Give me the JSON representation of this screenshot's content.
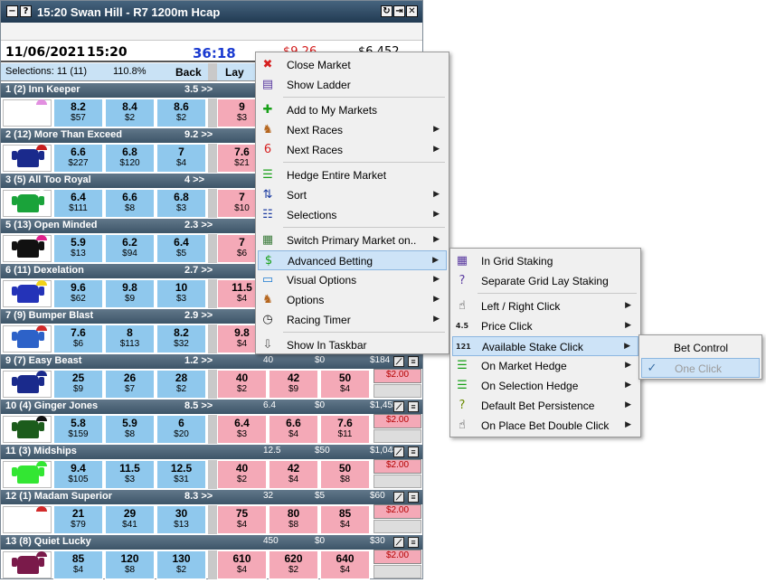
{
  "window": {
    "title": "15:20  Swan Hill - R7 1200m Hcap",
    "min_glyph": "−",
    "help_glyph": "?",
    "right_btns": [
      "↻",
      "⇥",
      "✕"
    ]
  },
  "info": {
    "date": "11/06/2021",
    "time": "15:20",
    "countdown": "36:18",
    "matched": "$9.26",
    "total": "$6,452"
  },
  "header": {
    "selections": "Selections: 11 (11)",
    "percent": "110.8%",
    "back": "Back",
    "lay": "Lay"
  },
  "runners": [
    {
      "name": "1  (2) Inn Keeper",
      "odds": "3.5 >>",
      "extra": [
        "",
        "",
        ""
      ],
      "back": [
        {
          "p": "8.2",
          "a": "$57"
        },
        {
          "p": "8.4",
          "a": "$2"
        },
        {
          "p": "8.6",
          "a": "$2"
        }
      ],
      "lay": [
        {
          "p": "9",
          "a": "$3"
        }
      ],
      "body": "#ffffff",
      "cap": "#e28fe0"
    },
    {
      "name": "2  (12) More Than Exceed",
      "odds": "9.2 >>",
      "extra": [
        "",
        "",
        ""
      ],
      "back": [
        {
          "p": "6.6",
          "a": "$227"
        },
        {
          "p": "6.8",
          "a": "$120"
        },
        {
          "p": "7",
          "a": "$4"
        }
      ],
      "lay": [
        {
          "p": "7.6",
          "a": "$21"
        }
      ],
      "body": "#1a2a8c",
      "cap": "#c81e1e"
    },
    {
      "name": "3  (5) All Too Royal",
      "odds": "4 >>",
      "extra": [
        "",
        "",
        ""
      ],
      "back": [
        {
          "p": "6.4",
          "a": "$111"
        },
        {
          "p": "6.6",
          "a": "$8"
        },
        {
          "p": "6.8",
          "a": "$3"
        }
      ],
      "lay": [
        {
          "p": "7",
          "a": "$10"
        }
      ],
      "body": "#1aa33a",
      "cap": "#ffffff"
    },
    {
      "name": "5  (13) Open Minded",
      "odds": "2.3 >>",
      "extra": [
        "",
        "",
        ""
      ],
      "back": [
        {
          "p": "5.9",
          "a": "$13"
        },
        {
          "p": "6.2",
          "a": "$94"
        },
        {
          "p": "6.4",
          "a": "$5"
        }
      ],
      "lay": [
        {
          "p": "7",
          "a": "$6"
        }
      ],
      "body": "#111111",
      "cap": "#e0208c"
    },
    {
      "name": "6  (11) Dexelation",
      "odds": "2.7 >>",
      "extra": [
        "",
        "",
        ""
      ],
      "back": [
        {
          "p": "9.6",
          "a": "$62"
        },
        {
          "p": "9.8",
          "a": "$9"
        },
        {
          "p": "10",
          "a": "$3"
        }
      ],
      "lay": [
        {
          "p": "11.5",
          "a": "$4"
        }
      ],
      "body": "#2433b8",
      "cap": "#f1d21a"
    },
    {
      "name": "7  (9) Bumper Blast",
      "odds": "2.9 >>",
      "extra": [
        "",
        "",
        ""
      ],
      "back": [
        {
          "p": "7.6",
          "a": "$6"
        },
        {
          "p": "8",
          "a": "$113"
        },
        {
          "p": "8.2",
          "a": "$32"
        }
      ],
      "lay": [
        {
          "p": "9.8",
          "a": "$4"
        }
      ],
      "body": "#2d62c8",
      "cap": "#d22a2a"
    },
    {
      "name": "9  (7) Easy Beast",
      "odds": "1.2 >>",
      "extra": [
        "40",
        "$0",
        "$184"
      ],
      "back": [
        {
          "p": "25",
          "a": "$9"
        },
        {
          "p": "26",
          "a": "$7"
        },
        {
          "p": "28",
          "a": "$2"
        }
      ],
      "lay": [
        {
          "p": "40",
          "a": "$2"
        },
        {
          "p": "42",
          "a": "$9"
        },
        {
          "p": "50",
          "a": "$4"
        }
      ],
      "pl": "$2.00",
      "body": "#1a2a8c",
      "cap": "#1a2a8c"
    },
    {
      "name": "10  (4) Ginger Jones",
      "odds": "8.5 >>",
      "extra": [
        "6.4",
        "$0",
        "$1,455"
      ],
      "back": [
        {
          "p": "5.8",
          "a": "$159"
        },
        {
          "p": "5.9",
          "a": "$8"
        },
        {
          "p": "6",
          "a": "$20"
        }
      ],
      "lay": [
        {
          "p": "6.4",
          "a": "$3"
        },
        {
          "p": "6.6",
          "a": "$4"
        },
        {
          "p": "7.6",
          "a": "$11"
        }
      ],
      "pl": "$2.00",
      "body": "#1c5c1c",
      "cap": "#111111"
    },
    {
      "name": "11  (3) Midships",
      "odds": "",
      "extra": [
        "12.5",
        "$50",
        "$1,048"
      ],
      "back": [
        {
          "p": "9.4",
          "a": "$105"
        },
        {
          "p": "11.5",
          "a": "$3"
        },
        {
          "p": "12.5",
          "a": "$31"
        }
      ],
      "lay": [
        {
          "p": "40",
          "a": "$2"
        },
        {
          "p": "42",
          "a": "$4"
        },
        {
          "p": "50",
          "a": "$8"
        }
      ],
      "pl": "$2.00",
      "body": "#33e633",
      "cap": "#33e633"
    },
    {
      "name": "12  (1) Madam Superior",
      "odds": "8.3 >>",
      "extra": [
        "32",
        "$5",
        "$60"
      ],
      "back": [
        {
          "p": "21",
          "a": "$79"
        },
        {
          "p": "29",
          "a": "$41"
        },
        {
          "p": "30",
          "a": "$13"
        }
      ],
      "lay": [
        {
          "p": "75",
          "a": "$4"
        },
        {
          "p": "80",
          "a": "$8"
        },
        {
          "p": "85",
          "a": "$4"
        }
      ],
      "pl": "$2.00",
      "body": "#ffffff",
      "cap": "#d22a2a"
    },
    {
      "name": "13  (8) Quiet Lucky",
      "odds": "",
      "extra": [
        "450",
        "$0",
        "$30"
      ],
      "back": [
        {
          "p": "85",
          "a": "$4"
        },
        {
          "p": "120",
          "a": "$8"
        },
        {
          "p": "130",
          "a": "$2"
        }
      ],
      "lay": [
        {
          "p": "610",
          "a": "$4"
        },
        {
          "p": "620",
          "a": "$2"
        },
        {
          "p": "640",
          "a": "$4"
        }
      ],
      "pl": "$2.00",
      "body": "#7a1a4a",
      "cap": "#7a1a4a"
    }
  ],
  "menu1": [
    {
      "label": "Close Market",
      "icon": "close-market-icon",
      "glyph": "✖",
      "color": "#d62020",
      "arrow": false
    },
    {
      "label": "Show Ladder",
      "icon": "ladder-icon",
      "glyph": "▤",
      "color": "#5a3aa0",
      "arrow": false
    },
    {
      "sep": true
    },
    {
      "label": "Add to My Markets",
      "icon": "add-icon",
      "glyph": "✚",
      "color": "#17a017",
      "arrow": false
    },
    {
      "label": "Next Races",
      "icon": "horse-icon",
      "glyph": "♞",
      "color": "#b5651d",
      "arrow": true
    },
    {
      "label": "Next Races",
      "icon": "race-number-icon",
      "glyph": "6",
      "color": "#d62020",
      "arrow": true
    },
    {
      "sep": true
    },
    {
      "label": "Hedge Entire Market",
      "icon": "hedge-icon",
      "glyph": "☰",
      "color": "#17a017",
      "arrow": false
    },
    {
      "label": "Sort",
      "icon": "sort-icon",
      "glyph": "⇅",
      "color": "#1a3aa0",
      "arrow": true
    },
    {
      "label": "Selections",
      "icon": "list-icon",
      "glyph": "☷",
      "color": "#1a3aa0",
      "arrow": true
    },
    {
      "sep": true
    },
    {
      "label": "Switch Primary Market on..",
      "icon": "switch-market-icon",
      "glyph": "▦",
      "color": "#3a7a3a",
      "arrow": true
    },
    {
      "label": "Advanced Betting",
      "icon": "dollar-icon",
      "glyph": "$",
      "color": "#17a017",
      "arrow": true,
      "hl": true
    },
    {
      "label": "Visual Options",
      "icon": "monitor-icon",
      "glyph": "▭",
      "color": "#1a7ad0",
      "arrow": true
    },
    {
      "label": "Options",
      "icon": "horse-icon",
      "glyph": "♞",
      "color": "#b5651d",
      "arrow": true
    },
    {
      "label": "Racing Timer",
      "icon": "stopwatch-icon",
      "glyph": "◷",
      "color": "#222222",
      "arrow": true
    },
    {
      "sep": true
    },
    {
      "label": "Show In Taskbar",
      "icon": "taskbar-icon",
      "glyph": "⇩",
      "color": "#555555",
      "arrow": false
    }
  ],
  "menu2": [
    {
      "label": "In Grid Staking",
      "icon": "grid-icon",
      "glyph": "▦",
      "color": "#5a3aa0",
      "arrow": false
    },
    {
      "label": "Separate Grid Lay Staking",
      "icon": "question-icon",
      "glyph": "?",
      "color": "#5a3aa0",
      "arrow": false
    },
    {
      "sep": true
    },
    {
      "label": "Left / Right Click",
      "icon": "pointer-icon",
      "glyph": "☝",
      "color": "#222222",
      "arrow": true
    },
    {
      "label": "Price Click",
      "icon": "price-icon",
      "glyph": "4.5",
      "color": "#222222",
      "arrow": true
    },
    {
      "label": "Available Stake Click",
      "icon": "stake-icon",
      "glyph": "121",
      "color": "#222222",
      "arrow": true,
      "hl": true
    },
    {
      "label": "On Market Hedge",
      "icon": "hedge-icon",
      "glyph": "☰",
      "color": "#17a017",
      "arrow": true
    },
    {
      "label": "On Selection Hedge",
      "icon": "hedge-icon",
      "glyph": "☰",
      "color": "#17a017",
      "arrow": true
    },
    {
      "label": "Default Bet Persistence",
      "icon": "question-icon",
      "glyph": "?",
      "color": "#6a8a00",
      "arrow": true
    },
    {
      "label": "On Place Bet Double Click",
      "icon": "pointer-icon",
      "glyph": "☝",
      "color": "#222222",
      "arrow": true
    }
  ],
  "menu3": [
    {
      "label": "Bet Control",
      "checked": false
    },
    {
      "label": "One Click",
      "checked": true,
      "disabled": true,
      "check_glyph": "✓"
    }
  ]
}
